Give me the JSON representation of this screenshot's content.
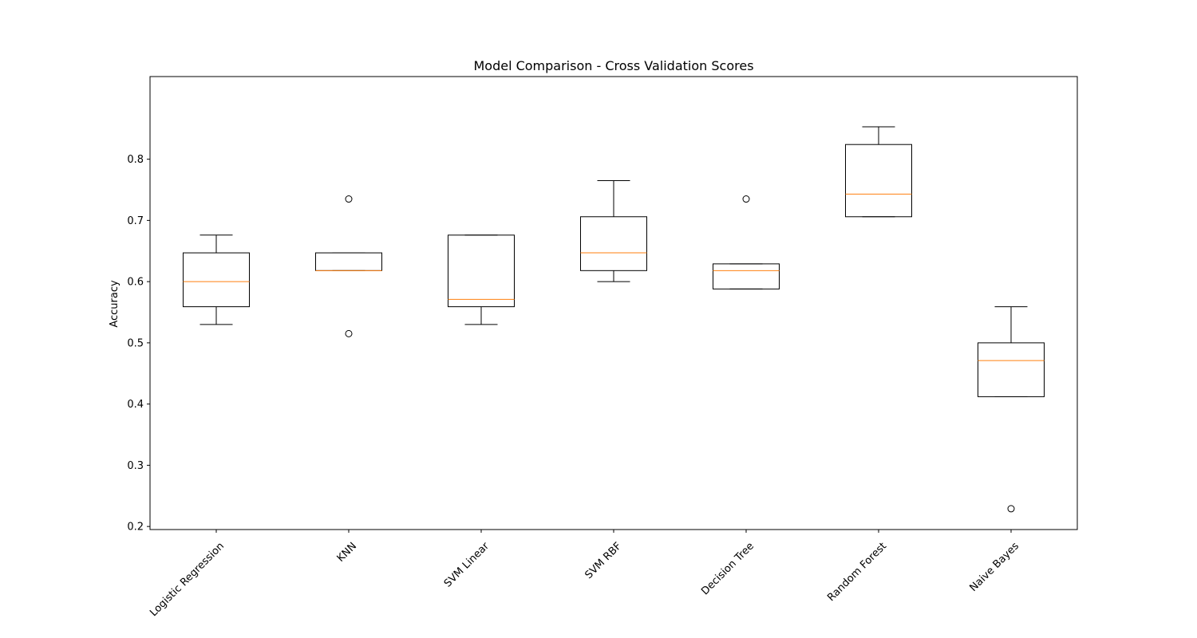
{
  "chart_data": {
    "type": "box",
    "title": "Model Comparison - Cross Validation Scores",
    "xlabel": "",
    "ylabel": "Accuracy",
    "ylim": [
      0.195,
      0.935
    ],
    "yticks": [
      0.2,
      0.3,
      0.4,
      0.5,
      0.6,
      0.7,
      0.8
    ],
    "ytick_labels": [
      "0.2",
      "0.3",
      "0.4",
      "0.5",
      "0.6",
      "0.7",
      "0.8"
    ],
    "grid": false,
    "categories": [
      "Logistic Regression",
      "KNN",
      "SVM Linear",
      "SVM RBF",
      "Decision Tree",
      "Random Forest",
      "Naive Bayes"
    ],
    "boxes": [
      {
        "whislo": 0.53,
        "q1": 0.559,
        "med": 0.6,
        "q3": 0.647,
        "whishi": 0.676,
        "fliers": []
      },
      {
        "whislo": 0.618,
        "q1": 0.618,
        "med": 0.618,
        "q3": 0.647,
        "whishi": 0.647,
        "fliers": [
          0.735,
          0.515
        ]
      },
      {
        "whislo": 0.53,
        "q1": 0.559,
        "med": 0.571,
        "q3": 0.676,
        "whishi": 0.676,
        "fliers": []
      },
      {
        "whislo": 0.6,
        "q1": 0.618,
        "med": 0.647,
        "q3": 0.706,
        "whishi": 0.765,
        "fliers": []
      },
      {
        "whislo": 0.588,
        "q1": 0.588,
        "med": 0.618,
        "q3": 0.629,
        "whishi": 0.629,
        "fliers": [
          0.735
        ]
      },
      {
        "whislo": 0.706,
        "q1": 0.706,
        "med": 0.743,
        "q3": 0.824,
        "whishi": 0.853,
        "fliers": []
      },
      {
        "whislo": 0.412,
        "q1": 0.412,
        "med": 0.471,
        "q3": 0.5,
        "whishi": 0.559,
        "fliers": [
          0.229
        ]
      }
    ],
    "colors": {
      "box": "#000000",
      "median": "#ff7f0e",
      "axes": "#000000",
      "background": "#ffffff"
    }
  }
}
